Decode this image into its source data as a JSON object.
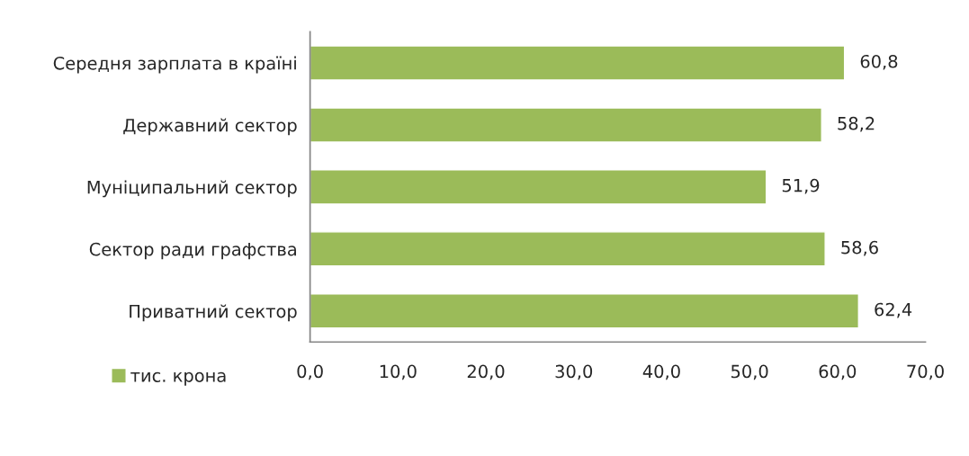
{
  "chart_data": {
    "type": "bar",
    "orientation": "horizontal",
    "categories": [
      "Середня зарплата в країні",
      "Державний сектор",
      "Муніципальний сектор",
      "Сектор ради графства",
      "Приватний сектор"
    ],
    "series": [
      {
        "name": "тис. крона",
        "color": "#9bbb59",
        "values": [
          60.8,
          58.2,
          51.9,
          58.6,
          62.4
        ],
        "value_labels": [
          "60,8",
          "58,2",
          "51,9",
          "58,6",
          "62,4"
        ]
      }
    ],
    "xlim": [
      0,
      70
    ],
    "xticks": [
      {
        "value": 0,
        "label": "0,0"
      },
      {
        "value": 10,
        "label": "10,0"
      },
      {
        "value": 20,
        "label": "20,0"
      },
      {
        "value": 30,
        "label": "30,0"
      },
      {
        "value": 40,
        "label": "40,0"
      },
      {
        "value": 50,
        "label": "50,0"
      },
      {
        "value": 60,
        "label": "60,0"
      },
      {
        "value": 70,
        "label": "70,0"
      }
    ],
    "grid": false,
    "legend": "bottom left"
  }
}
